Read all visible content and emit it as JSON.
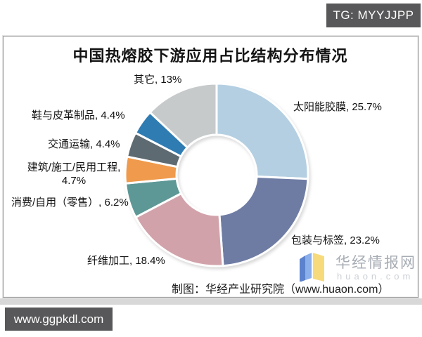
{
  "page": {
    "top_badge": "TG: MYYJJPP",
    "bottom_badge": "www.ggpkdl.com"
  },
  "chart": {
    "title": "中国热熔胶下游应用占比结构分布情况",
    "caption": "制图：华经产业研究院（www.huaon.com）"
  },
  "watermark": {
    "site_name": "华经情报网",
    "site_domain": "huaon.com",
    "logo_colors": {
      "left_dark": "#3f6cc4",
      "left_light": "#7ea6e8",
      "right": "#f7da7b"
    }
  },
  "chart_data": {
    "type": "pie",
    "donut": true,
    "title": "中国热熔胶下游应用占比结构分布情况",
    "start_angle_deg": 0,
    "direction": "clockwise",
    "legend": "none",
    "labels_outside": true,
    "segments": [
      {
        "id": "solar-film",
        "label": "太阳能胶膜",
        "value": 25.7,
        "color": "#b4cfe2",
        "display": "太阳能胶膜, 25.7%"
      },
      {
        "id": "packaging-labels",
        "label": "包装与标签",
        "value": 23.2,
        "color": "#6e7ca4",
        "display": "包装与标签, 23.2%"
      },
      {
        "id": "fiber-processing",
        "label": "纤维加工",
        "value": 18.4,
        "color": "#d2a2aa",
        "display": "纤维加工, 18.4%"
      },
      {
        "id": "consumer-retail",
        "label": "消费/自用（零售）",
        "value": 6.2,
        "color": "#5d9896",
        "display": "消费/自用（零售）, 6.2%"
      },
      {
        "id": "construction",
        "label": "建筑/施工/民用工程",
        "value": 4.7,
        "color": "#ef9a4c",
        "display": "建筑/施工/民用工程, 4.7%"
      },
      {
        "id": "transportation",
        "label": "交通运输",
        "value": 4.4,
        "color": "#5e6a71",
        "display": "交通运输, 4.4%"
      },
      {
        "id": "footwear-leather",
        "label": "鞋与皮革制品",
        "value": 4.4,
        "color": "#2f7cb3",
        "display": "鞋与皮革制品, 4.4%"
      },
      {
        "id": "other",
        "label": "其它",
        "value": 13.0,
        "color": "#c7cacb",
        "display": "其它, 13%"
      }
    ]
  }
}
